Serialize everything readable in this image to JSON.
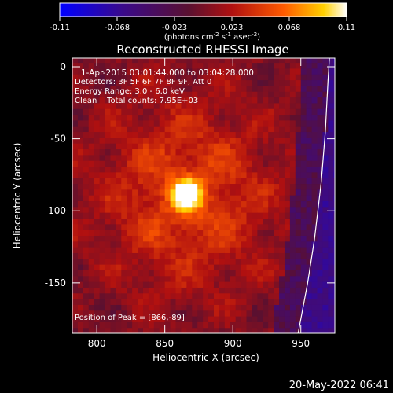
{
  "chart_data": {
    "type": "heatmap",
    "title": "Reconstructed RHESSI Image",
    "xlabel": "Heliocentric X (arcsec)",
    "ylabel": "Heliocentric Y (arcsec)",
    "xlim": [
      782,
      975
    ],
    "ylim": [
      -185,
      6
    ],
    "x_ticks": [
      800,
      850,
      900,
      950
    ],
    "y_ticks": [
      0,
      -50,
      -100,
      -150
    ],
    "colorbar": {
      "label_base": "(photons cm",
      "label_sup1": "-2",
      "label_mid": " s",
      "label_sup2": "-1",
      "label_mid2": " asec",
      "label_sup3": "-2",
      "label_end": ")",
      "range": [
        -0.11,
        0.11
      ],
      "ticks": [
        "-0.11",
        "-0.068",
        "-0.023",
        "0.023",
        "0.068",
        "0.11"
      ]
    },
    "annotations": {
      "time_range": "1-Apr-2015 03:01:44.000 to 03:04:28.000",
      "detectors": "Detectors: 3F 5F 6F 7F 8F 9F, Att 0",
      "energy": "Energy Range: 3.0 - 6.0 keV",
      "clean": "Clean    Total counts: 7.95E+03",
      "peak": "Position of Peak = [866,-89]"
    },
    "peak": [
      866,
      -89
    ],
    "peak_value": 0.11,
    "limb_points": [
      [
        948,
        -185
      ],
      [
        955,
        -150
      ],
      [
        960,
        -120
      ],
      [
        965,
        -80
      ],
      [
        968,
        -45
      ],
      [
        970,
        -10
      ],
      [
        971,
        6
      ]
    ],
    "footer": "20-May-2022 06:41"
  }
}
